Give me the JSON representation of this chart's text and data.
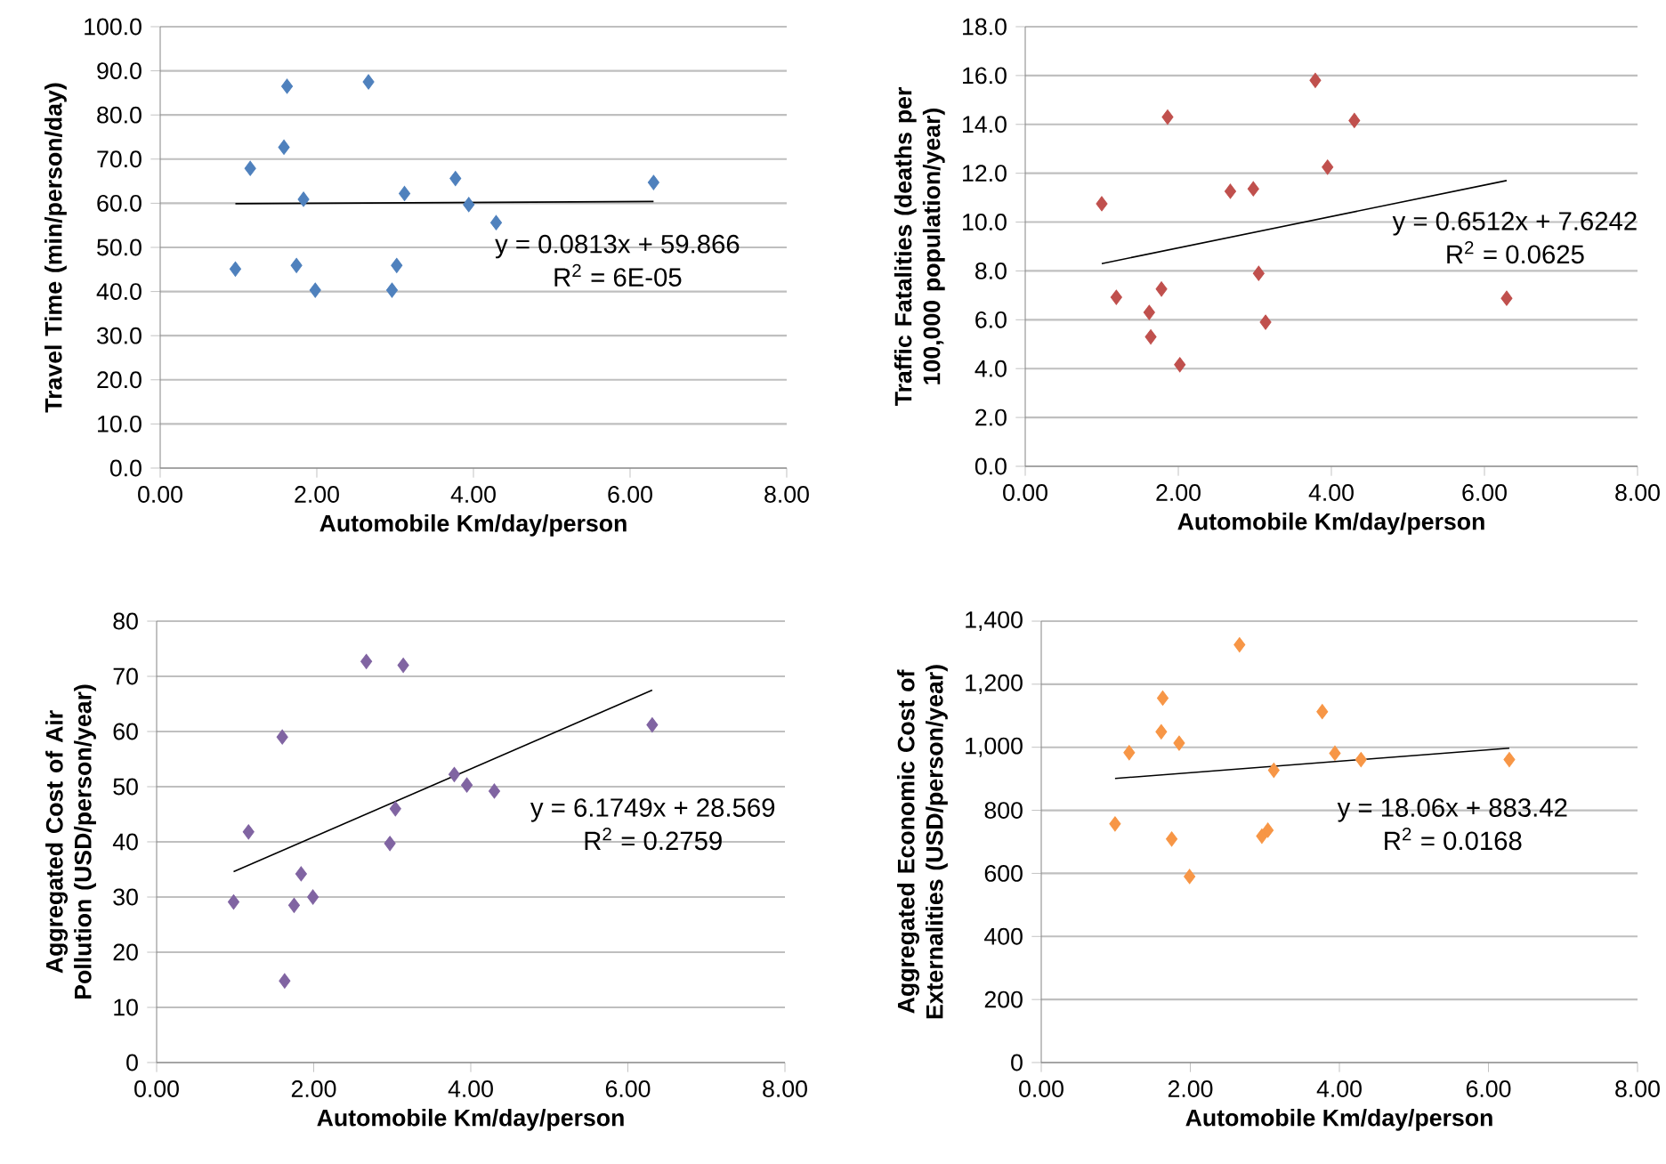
{
  "chart_data": [
    {
      "type": "scatter",
      "xlabel": "Automobile Km/day/person",
      "ylabel": "Travel Time (min/person/day)",
      "marker": "diamond",
      "grid": "y",
      "xlim": [
        0,
        8
      ],
      "xticks": [
        {
          "value": 0,
          "label": "0.00"
        },
        {
          "value": 2,
          "label": "2.00"
        },
        {
          "value": 4,
          "label": "4.00"
        },
        {
          "value": 6,
          "label": "6.00"
        },
        {
          "value": 8,
          "label": "8.00"
        }
      ],
      "ylim": [
        0,
        100
      ],
      "yticks": [
        {
          "value": 0,
          "label": "0.0"
        },
        {
          "value": 10,
          "label": "10.0"
        },
        {
          "value": 20,
          "label": "20.0"
        },
        {
          "value": 30,
          "label": "30.0"
        },
        {
          "value": 40,
          "label": "40.0"
        },
        {
          "value": 50,
          "label": "50.0"
        },
        {
          "value": 60,
          "label": "60.0"
        },
        {
          "value": 70,
          "label": "70.0"
        },
        {
          "value": 80,
          "label": "80.0"
        },
        {
          "value": 90,
          "label": "90.0"
        },
        {
          "value": 100,
          "label": "100.0"
        }
      ],
      "series": [
        {
          "color": "#4f81bd",
          "x": [
            0.96,
            1.15,
            1.58,
            1.62,
            1.74,
            1.83,
            1.98,
            2.66,
            2.96,
            3.02,
            3.12,
            3.77,
            3.94,
            4.29,
            6.3
          ],
          "values": [
            45.1,
            67.9,
            72.7,
            86.5,
            45.9,
            60.9,
            40.3,
            87.5,
            40.3,
            45.9,
            62.2,
            65.6,
            59.7,
            55.6,
            64.7
          ]
        },
        {
          "type": "line",
          "color": "#000000",
          "x": [
            0.96,
            6.3
          ],
          "values": [
            59.9,
            60.4
          ],
          "marker": "none"
        }
      ],
      "annotations": [
        "y = 0.0813x + 59.866",
        "R$^{2}$ = 6E-05"
      ]
    },
    {
      "type": "scatter",
      "xlabel": "Automobile Km/day/person",
      "ylabel": "Traffic Fatalities (deaths per 100,000 population/year)",
      "marker": "diamond",
      "grid": "y",
      "xlim": [
        0,
        8
      ],
      "xticks": [
        {
          "value": 0,
          "label": "0.00"
        },
        {
          "value": 2,
          "label": "2.00"
        },
        {
          "value": 4,
          "label": "4.00"
        },
        {
          "value": 6,
          "label": "6.00"
        },
        {
          "value": 8,
          "label": "8.00"
        }
      ],
      "ylim": [
        0,
        18
      ],
      "yticks": [
        {
          "value": 0,
          "label": "0.0"
        },
        {
          "value": 2,
          "label": "2.0"
        },
        {
          "value": 4,
          "label": "4.0"
        },
        {
          "value": 6,
          "label": "6.0"
        },
        {
          "value": 8,
          "label": "8.0"
        },
        {
          "value": 10,
          "label": "10.0"
        },
        {
          "value": 12,
          "label": "12.0"
        },
        {
          "value": 14,
          "label": "14.0"
        },
        {
          "value": 16,
          "label": "16.0"
        },
        {
          "value": 18,
          "label": "18.0"
        }
      ],
      "series": [
        {
          "color": "#c0504d",
          "x": [
            1.0,
            1.19,
            1.62,
            1.64,
            1.78,
            1.86,
            2.02,
            2.68,
            2.98,
            3.05,
            3.14,
            3.79,
            3.95,
            4.3,
            6.29
          ],
          "values": [
            10.75,
            6.92,
            6.3,
            5.3,
            7.26,
            14.3,
            4.16,
            11.26,
            11.36,
            7.9,
            5.9,
            15.8,
            12.25,
            14.16,
            6.88
          ]
        },
        {
          "type": "line",
          "color": "#000000",
          "x": [
            1.0,
            6.29
          ],
          "values": [
            8.3,
            11.7
          ],
          "marker": "none"
        }
      ],
      "annotations": [
        "y = 0.6512x + 7.6242",
        "R$^{2}$ = 0.0625"
      ]
    },
    {
      "type": "scatter",
      "xlabel": "Automobile Km/day/person",
      "ylabel": "Aggregated Cost of Air Pollution (USD/person/year)",
      "marker": "diamond",
      "grid": "y",
      "xlim": [
        0,
        8
      ],
      "xticks": [
        {
          "value": 0,
          "label": "0.00"
        },
        {
          "value": 2,
          "label": "2.00"
        },
        {
          "value": 4,
          "label": "4.00"
        },
        {
          "value": 6,
          "label": "6.00"
        },
        {
          "value": 8,
          "label": "8.00"
        }
      ],
      "ylim": [
        0,
        80
      ],
      "yticks": [
        0,
        10,
        20,
        30,
        40,
        50,
        60,
        70,
        80
      ],
      "series": [
        {
          "color": "#8064a2",
          "x": [
            0.98,
            1.17,
            1.6,
            1.63,
            1.75,
            1.84,
            1.99,
            2.67,
            2.97,
            3.04,
            3.14,
            3.79,
            3.95,
            4.3,
            6.31
          ],
          "values": [
            29.1,
            41.8,
            59.0,
            14.8,
            28.5,
            34.2,
            30.0,
            72.7,
            39.7,
            46.0,
            72.0,
            52.2,
            50.3,
            49.2,
            61.2
          ]
        },
        {
          "type": "line",
          "color": "#000000",
          "x": [
            0.98,
            6.31
          ],
          "values": [
            34.6,
            67.5
          ],
          "marker": "none"
        }
      ],
      "annotations": [
        "y = 6.1749x + 28.569",
        "R$^{2}$ = 0.2759"
      ]
    },
    {
      "type": "scatter",
      "xlabel": "Automobile Km/day/person",
      "ylabel": "Aggregated Economic Cost of Externalities (USD/person/year)",
      "marker": "diamond",
      "grid": "y",
      "xlim": [
        0,
        8
      ],
      "xticks": [
        {
          "value": 0,
          "label": "0.00"
        },
        {
          "value": 2,
          "label": "2.00"
        },
        {
          "value": 4,
          "label": "4.00"
        },
        {
          "value": 6,
          "label": "6.00"
        },
        {
          "value": 8,
          "label": "8.00"
        }
      ],
      "ylim": [
        0,
        1400
      ],
      "yticks": [
        0,
        200,
        400,
        600,
        800,
        {
          "value": 1000,
          "label": "1,000"
        },
        {
          "value": 1200,
          "label": "1,200"
        },
        {
          "value": 1400,
          "label": "1,400"
        }
      ],
      "series": [
        {
          "color": "#f79646",
          "x": [
            0.99,
            1.18,
            1.61,
            1.63,
            1.75,
            1.85,
            1.99,
            2.66,
            2.96,
            3.04,
            3.12,
            3.77,
            3.94,
            4.29,
            6.28
          ],
          "values": [
            757,
            983,
            1049,
            1156,
            709,
            1013,
            590,
            1325,
            718,
            737,
            927,
            1113,
            981,
            961,
            961
          ]
        },
        {
          "type": "line",
          "color": "#000000",
          "x": [
            0.99,
            6.28
          ],
          "values": [
            901,
            997
          ],
          "marker": "none"
        }
      ],
      "annotations": [
        "y = 18.06x + 883.42",
        "R$^{2}$ = 0.0168"
      ]
    }
  ]
}
